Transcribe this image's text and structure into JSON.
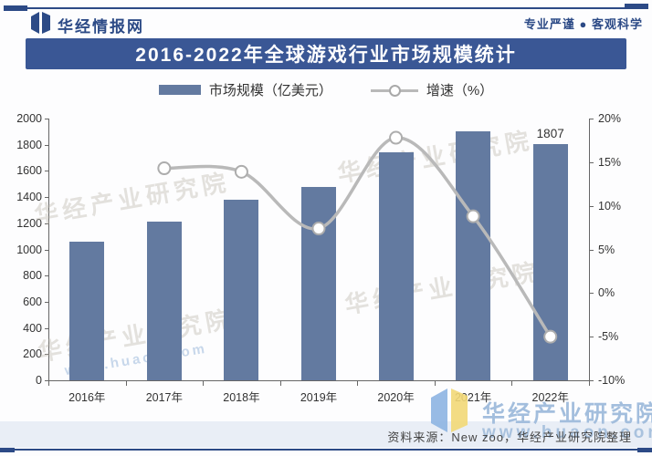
{
  "header": {
    "brand": "华经情报网",
    "slogan": "专业严谨 ● 客观科学"
  },
  "title": "2016-2022年全球游戏行业市场规模统计",
  "legend": {
    "bar_label": "市场规模（亿美元）",
    "line_label": "增速（%）"
  },
  "chart_data": {
    "type": "bar",
    "title": "2016-2022年全球游戏行业市场规模统计",
    "categories": [
      "2016年",
      "2017年",
      "2018年",
      "2019年",
      "2020年",
      "2021年",
      "2022年"
    ],
    "series": [
      {
        "name": "市场规模（亿美元）",
        "type": "bar",
        "axis": "left",
        "values": [
          1060,
          1210,
          1380,
          1480,
          1745,
          1900,
          1807
        ]
      },
      {
        "name": "增速（%）",
        "type": "line",
        "axis": "right",
        "values": [
          null,
          14.3,
          13.9,
          7.4,
          17.8,
          8.8,
          -5.0
        ]
      }
    ],
    "left_axis": {
      "min": 0,
      "max": 2000,
      "step": 200
    },
    "right_axis": {
      "min": -10,
      "max": 20,
      "step": 5,
      "suffix": "%"
    },
    "point_labels": [
      {
        "category": "2022年",
        "series": "市场规模（亿美元）",
        "text": "1807"
      }
    ],
    "grid": false,
    "legend_position": "top",
    "colors": {
      "bar": "#637aa0",
      "line": "#b9b9b9",
      "marker_fill": "#ffffff",
      "marker_stroke": "#adadad"
    }
  },
  "watermarks": {
    "diagonal_text": "华经产业研究院",
    "url_text": "www.huaon.com",
    "corner_text": "华经产业研究院",
    "corner_url": "www.huaon.com"
  },
  "footer": {
    "source": "资料来源：New zoo，华经产业研究院整理"
  }
}
